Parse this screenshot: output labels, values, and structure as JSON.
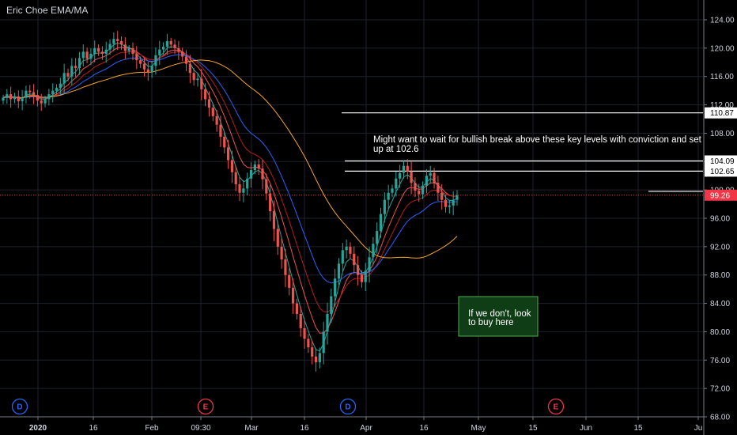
{
  "chart_data": {
    "type": "candlestick",
    "title": "Eric Choe EMA/MA",
    "y_axis": {
      "ticks": [
        "124.00",
        "120.00",
        "116.00",
        "112.00",
        "108.00",
        "104.00",
        "100.00",
        "96.00",
        "92.00",
        "88.00",
        "84.00",
        "80.00",
        "76.00",
        "72.00",
        "68.00"
      ],
      "range": [
        68,
        125.5
      ]
    },
    "x_axis": {
      "ticks": [
        {
          "label": "2020",
          "bold": true
        },
        {
          "label": "16"
        },
        {
          "label": "Feb"
        },
        {
          "label": "09:30"
        },
        {
          "label": "Mar"
        },
        {
          "label": "16"
        },
        {
          "label": "Apr"
        },
        {
          "label": "16"
        },
        {
          "label": "May"
        },
        {
          "label": "15"
        },
        {
          "label": "Jun"
        },
        {
          "label": "15"
        },
        {
          "label": "Ju"
        }
      ]
    },
    "current_price": {
      "label": "99.26",
      "value": 99.26,
      "color": "#f23645"
    },
    "levels": [
      {
        "label": "110.87",
        "value": 110.87
      },
      {
        "label": "104.09",
        "value": 104.09
      },
      {
        "label": "102.65",
        "value": 102.65
      },
      {
        "label": "",
        "value": 99.8
      }
    ],
    "annotations": [
      {
        "lines": [
          "Might want to wait for bullish break above these key levels with conviction and set",
          "up at 102.6"
        ]
      }
    ],
    "callout": {
      "lines": [
        "If we don't, look",
        "to buy here"
      ],
      "border": "#4caf50",
      "fill": "#0f3d15"
    },
    "event_markers": [
      {
        "label": "D",
        "color": "#2962ff"
      },
      {
        "label": "E",
        "color": "#f23645"
      },
      {
        "label": "D",
        "color": "#2962ff"
      },
      {
        "label": "E",
        "color": "#f23645"
      }
    ],
    "series": [
      {
        "name": "",
        "type": "candles",
        "up_color": "#26a69a",
        "down_color": "#ef5350",
        "close": [
          113,
          113.5,
          112.8,
          113.2,
          112.5,
          113,
          114,
          113.8,
          113.4,
          112.6,
          112.2,
          112.8,
          113.5,
          114,
          114.4,
          115,
          116.5,
          116,
          117.5,
          117.2,
          118.6,
          119.5,
          118.5,
          119.2,
          120,
          119.5,
          119.2,
          119.8,
          120.6,
          121.3,
          121,
          120.5,
          119.6,
          120,
          119.2,
          118.3,
          117.8,
          117,
          116.6,
          117.5,
          119,
          119.8,
          120.2,
          121,
          120.5,
          120,
          119.5,
          118.8,
          117.8,
          116.5,
          115.5,
          115.7,
          114.2,
          112.8,
          111.6,
          110.4,
          109.2,
          107.5,
          106,
          104.2,
          102.5,
          100.8,
          99.6,
          100.2,
          101.6,
          102.8,
          103.6,
          103,
          101.5,
          99.5,
          97,
          94.5,
          92,
          90.2,
          88,
          86.2,
          84,
          82.5,
          80.5,
          79,
          77.8,
          76.5,
          75.7,
          77,
          80,
          82.5,
          85,
          87.5,
          89.6,
          91.5,
          92,
          91,
          89.4,
          88,
          87,
          88.6,
          90.5,
          92.4,
          94.2,
          96.6,
          98.6,
          99.6,
          100.2,
          101.6,
          102.4,
          103.4,
          102.6,
          101,
          99.9,
          99.4,
          100.6,
          102,
          102.4,
          101,
          99.6,
          98.6,
          97.6,
          97.8,
          98.6,
          99.26
        ]
      },
      {
        "name": "",
        "type": "line",
        "color": "#26a69a"
      },
      {
        "name": "",
        "type": "line",
        "color": "#ef5350"
      },
      {
        "name": "",
        "type": "line",
        "color": "#b71c1c"
      },
      {
        "name": "",
        "type": "line",
        "color": "#2962ff"
      },
      {
        "name": "",
        "type": "line",
        "color": "#f5a623"
      }
    ]
  }
}
